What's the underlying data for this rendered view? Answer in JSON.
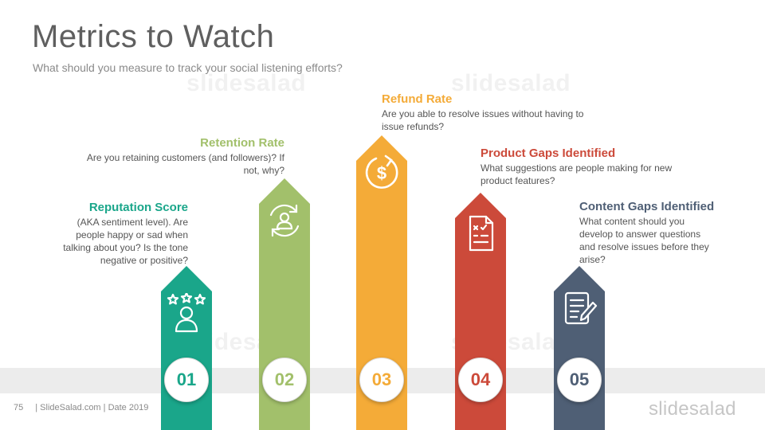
{
  "slide": {
    "title": "Metrics to Watch",
    "subtitle": "What should you measure to track your social listening efforts?"
  },
  "metrics": [
    {
      "number": "01",
      "title": "Reputation Score",
      "color": "#1aa68a",
      "icon": "reputation-stars-icon",
      "lines": [
        "(AKA sentiment level). Are",
        "people happy or sad when",
        "talking about you? Is the tone",
        "negative or positive?"
      ]
    },
    {
      "number": "02",
      "title": "Retention Rate",
      "color": "#a2c06b",
      "icon": "user-cycle-icon",
      "lines": [
        "Are you retaining customers (and followers)? If",
        "not, why?"
      ]
    },
    {
      "number": "03",
      "title": "Refund Rate",
      "color": "#f4ab38",
      "icon": "refund-dollar-icon",
      "lines": [
        "Are you able to resolve issues without having to",
        "issue refunds?"
      ]
    },
    {
      "number": "04",
      "title": "Product Gaps Identified",
      "color": "#cc4a3a",
      "icon": "checklist-icon",
      "lines": [
        "What suggestions are people making for new",
        "product features?"
      ]
    },
    {
      "number": "05",
      "title": "Content Gaps Identified",
      "color": "#4f5f75",
      "icon": "document-pen-icon",
      "lines": [
        "What content should you",
        "develop to answer questions",
        "and resolve issues before they",
        "arise?"
      ]
    }
  ],
  "footer": {
    "page": "75",
    "text": "| SlideSalad.com | Date 2019",
    "logo": "slidesalad"
  },
  "watermark": "slidesalad"
}
